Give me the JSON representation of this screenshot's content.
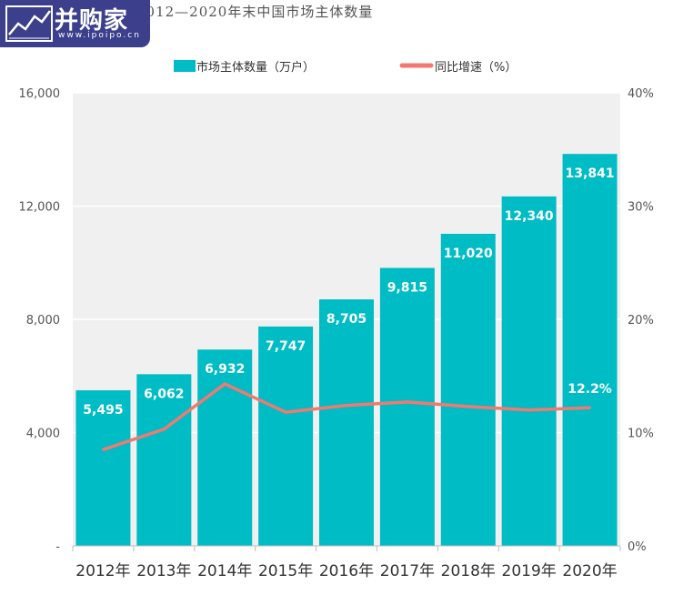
{
  "title": "2012—2020年末中国市场主体数量",
  "logo": {
    "name": "并购家",
    "url": "www.ipoipo.cn"
  },
  "colors": {
    "bar": "#00bcc5",
    "line": "#f07a72",
    "plot_bg": "#f0f0f0",
    "grid": "#ffffff",
    "axis_text": "#555555"
  },
  "chart_data": {
    "type": "bar",
    "title": "2012—2020年末中国市场主体数量",
    "categories": [
      "2012年",
      "2013年",
      "2014年",
      "2015年",
      "2016年",
      "2017年",
      "2018年",
      "2019年",
      "2020年"
    ],
    "series": [
      {
        "name": "市场主体数量（万户）",
        "type": "bar",
        "axis": "left",
        "values": [
          5495,
          6062,
          6932,
          7747,
          8705,
          9815,
          11020,
          12340,
          13841
        ],
        "labels": [
          "5,495",
          "6,062",
          "6,932",
          "7,747",
          "8,705",
          "9,815",
          "11,020",
          "12,340",
          "13,841"
        ]
      },
      {
        "name": "同比增速（%）",
        "type": "line",
        "axis": "right",
        "values": [
          8.5,
          10.3,
          14.3,
          11.8,
          12.4,
          12.7,
          12.3,
          12.0,
          12.2
        ],
        "labels": [
          "",
          "",
          "",
          "",
          "",
          "",
          "",
          "",
          "12.2%"
        ]
      }
    ],
    "y_left": {
      "range": [
        0,
        16000
      ],
      "ticks": [
        0,
        4000,
        8000,
        12000,
        16000
      ],
      "tick_labels": [
        "-",
        "4,000",
        "8,000",
        "12,000",
        "16,000"
      ]
    },
    "y_right": {
      "range": [
        0,
        40
      ],
      "ticks": [
        0,
        10,
        20,
        30,
        40
      ],
      "tick_labels": [
        "0%",
        "10%",
        "20%",
        "30%",
        "40%"
      ]
    },
    "grid": true,
    "legend": "top-center"
  }
}
